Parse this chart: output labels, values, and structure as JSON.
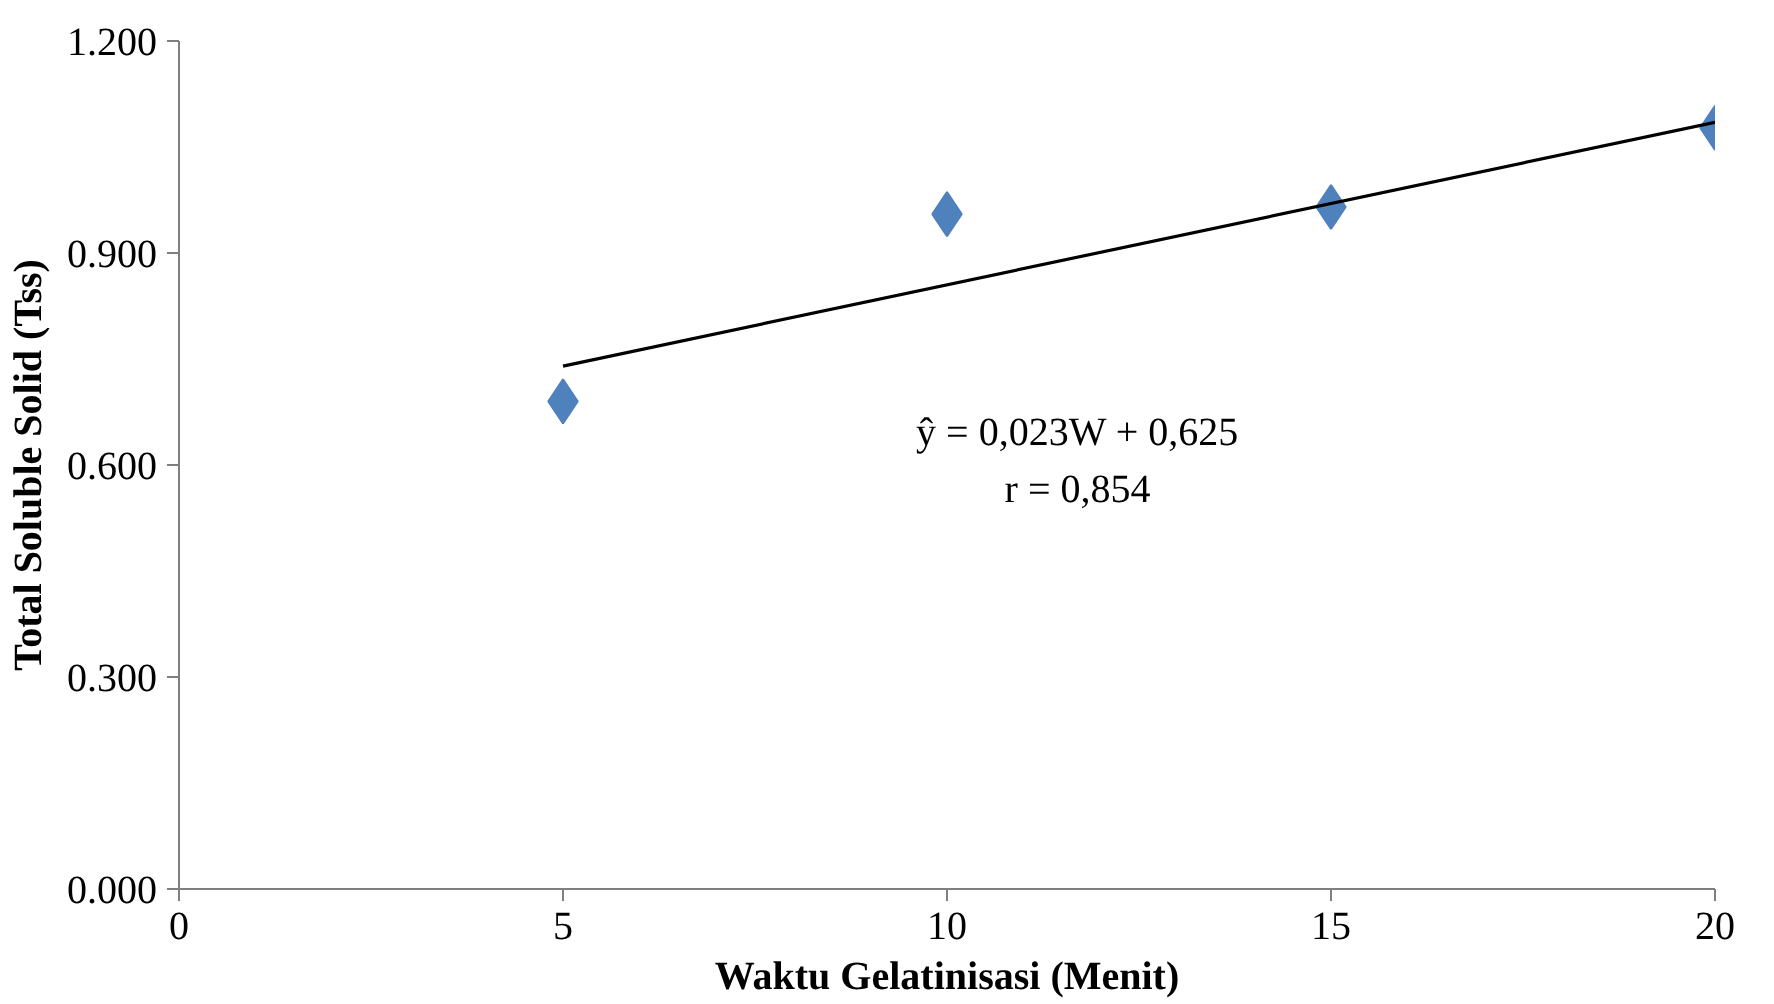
{
  "chart_data": {
    "type": "scatter",
    "xlabel": "Waktu Gelatinisasi (Menit)",
    "ylabel": "Total Soluble Solid (Tss)",
    "xlim": [
      0,
      20
    ],
    "xticks": [
      0,
      5,
      10,
      15,
      20
    ],
    "ylim": [
      0,
      1.2
    ],
    "yticks": [
      {
        "value": 0,
        "label": "0.000"
      },
      {
        "value": 0.3,
        "label": "0.300"
      },
      {
        "value": 0.6,
        "label": "0.600"
      },
      {
        "value": 0.9,
        "label": "0.900"
      },
      {
        "value": 1.2,
        "label": "1.200"
      }
    ],
    "grid": false,
    "marker": "diamond",
    "series": [
      {
        "color": "#4f81bd",
        "x": [
          5,
          10,
          15,
          20
        ],
        "values": [
          0.69,
          0.955,
          0.965,
          1.077
        ]
      },
      {
        "type": "line",
        "color": "#000000",
        "x": [
          5,
          20
        ],
        "values": [
          0.74,
          1.085
        ],
        "marker": "none"
      }
    ],
    "annotations": [
      "ŷ = 0,023W + 0,625",
      "r = 0,854"
    ]
  }
}
